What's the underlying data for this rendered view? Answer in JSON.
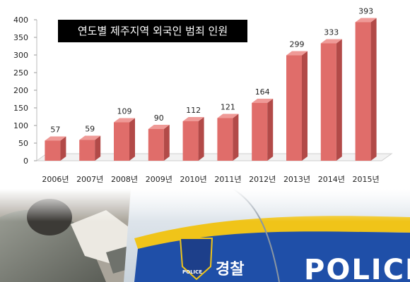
{
  "chart_data": {
    "type": "bar",
    "title": "연도별 제주지역 외국인 범죄 인원",
    "categories": [
      "2006년",
      "2007년",
      "2008년",
      "2009년",
      "2010년",
      "2011년",
      "2012년",
      "2013년",
      "2014년",
      "2015년"
    ],
    "values": [
      57,
      59,
      109,
      90,
      112,
      121,
      164,
      299,
      333,
      393
    ],
    "yticks": [
      "0",
      "50",
      "100",
      "150",
      "200",
      "250",
      "300",
      "350",
      "400"
    ],
    "ylim": [
      0,
      400
    ],
    "xlabel": "",
    "ylabel": "",
    "grid": false,
    "bar_color": "#e06d6a",
    "bar_side_color": "#b24a48",
    "bar_top_color": "#ef9a97"
  },
  "photo": {
    "korean_label": "경찰",
    "english_label": "POLICE",
    "badge_label": "POLICE",
    "stripe_color": "#1f4fa8",
    "accent_color": "#f0c419"
  }
}
